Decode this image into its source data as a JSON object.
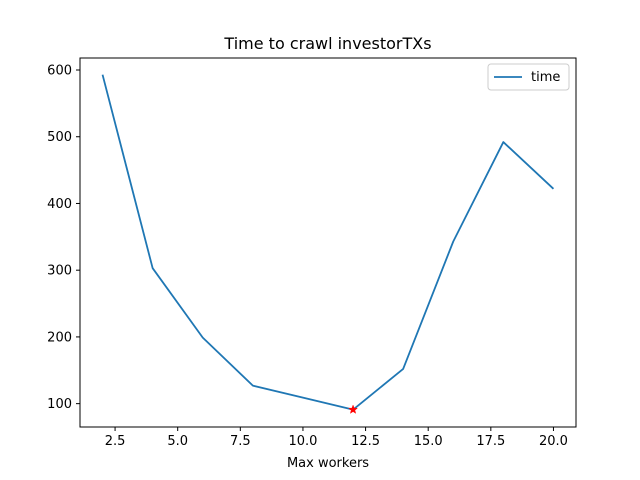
{
  "chart_data": {
    "type": "line",
    "title": "Time to crawl investorTXs",
    "xlabel": "Max workers",
    "ylabel": "",
    "x": [
      2,
      4,
      6,
      8,
      10,
      12,
      14,
      16,
      18,
      20
    ],
    "series": [
      {
        "name": "time",
        "color": "#1f77b4",
        "values": [
          593,
          303,
          199,
          127,
          109,
          91,
          152,
          343,
          492,
          422
        ]
      }
    ],
    "marker": {
      "x": 12,
      "y": 91,
      "color": "#ff0000",
      "shape": "star"
    },
    "xlim": [
      1.1,
      20.9
    ],
    "ylim": [
      65,
      618
    ],
    "xticks": [
      2.5,
      5.0,
      7.5,
      10.0,
      12.5,
      15.0,
      17.5,
      20.0
    ],
    "xtick_labels": [
      "2.5",
      "5.0",
      "7.5",
      "10.0",
      "12.5",
      "15.0",
      "17.5",
      "20.0"
    ],
    "yticks": [
      100,
      200,
      300,
      400,
      500,
      600
    ],
    "ytick_labels": [
      "100",
      "200",
      "300",
      "400",
      "500",
      "600"
    ],
    "legend_position": "top-right",
    "grid": false
  }
}
